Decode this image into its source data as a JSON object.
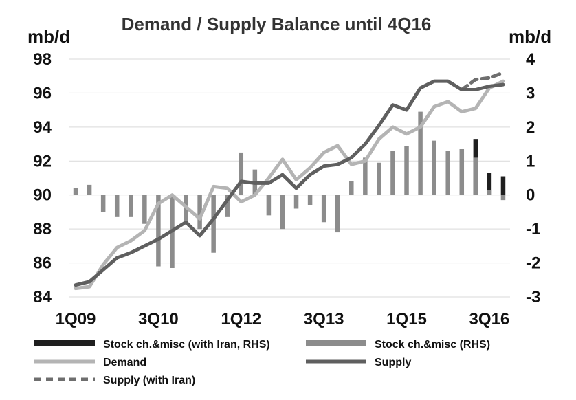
{
  "chart_data": {
    "type": "bar+line",
    "title": "Demand / Supply Balance until 4Q16",
    "y_left_unit": "mb/d",
    "y_right_unit": "mb/d",
    "y_left_range": [
      84,
      98
    ],
    "y_right_range": [
      -3,
      4
    ],
    "y_left_ticks": [
      "98",
      "96",
      "94",
      "92",
      "90",
      "88",
      "86",
      "84"
    ],
    "y_right_ticks": [
      "4",
      "3",
      "2",
      "1",
      "0",
      "-1",
      "-2",
      "-3"
    ],
    "x_tick_labels": [
      "1Q09",
      "3Q10",
      "1Q12",
      "3Q13",
      "1Q15",
      "3Q16"
    ],
    "x_tick_positions": [
      0,
      6,
      12,
      18,
      24,
      30
    ],
    "gridlines": "horizontal",
    "legend_position": "bottom",
    "quarters": [
      "1Q09",
      "2Q09",
      "3Q09",
      "4Q09",
      "1Q10",
      "2Q10",
      "3Q10",
      "4Q10",
      "1Q11",
      "2Q11",
      "3Q11",
      "4Q11",
      "1Q12",
      "2Q12",
      "3Q12",
      "4Q12",
      "1Q13",
      "2Q13",
      "3Q13",
      "4Q13",
      "1Q14",
      "2Q14",
      "3Q14",
      "4Q14",
      "1Q15",
      "2Q15",
      "3Q15",
      "4Q15",
      "1Q16",
      "2Q16",
      "3Q16",
      "4Q16"
    ],
    "series": [
      {
        "name": "Stock ch.&misc (with Iran, RHS)",
        "kind": "bar",
        "axis": "right",
        "color": "#1f1f1f",
        "values": [
          null,
          null,
          null,
          null,
          null,
          null,
          null,
          null,
          null,
          null,
          null,
          null,
          null,
          null,
          null,
          null,
          null,
          null,
          null,
          null,
          null,
          null,
          null,
          null,
          null,
          null,
          null,
          null,
          null,
          1.65,
          0.65,
          0.55
        ]
      },
      {
        "name": "Stock ch.&misc (RHS)",
        "kind": "bar",
        "axis": "right",
        "color": "#8c8c8c",
        "values": [
          0.2,
          0.3,
          -0.5,
          -0.65,
          -0.65,
          -0.85,
          -2.1,
          -2.15,
          -0.85,
          -1.0,
          -1.7,
          -0.65,
          1.25,
          0.75,
          -0.6,
          -1.0,
          -0.4,
          -0.3,
          -0.8,
          -1.1,
          0.4,
          1.1,
          0.95,
          1.3,
          1.45,
          2.45,
          1.6,
          1.3,
          1.35,
          1.1,
          0.15,
          -0.15
        ]
      },
      {
        "name": "Demand",
        "kind": "line",
        "axis": "left",
        "color": "#b4b4b4",
        "dash": false,
        "values": [
          84.5,
          84.6,
          85.9,
          86.9,
          87.3,
          87.9,
          89.5,
          90.0,
          89.3,
          88.6,
          90.5,
          90.4,
          89.6,
          90.0,
          91.0,
          92.1,
          90.9,
          91.6,
          92.5,
          92.9,
          91.8,
          92.0,
          93.3,
          94.0,
          93.6,
          94.0,
          95.2,
          95.5,
          94.9,
          95.1,
          96.3,
          96.7
        ]
      },
      {
        "name": "Supply",
        "kind": "line",
        "axis": "left",
        "color": "#5f5f5f",
        "dash": false,
        "values": [
          84.7,
          84.9,
          85.6,
          86.3,
          86.6,
          87.0,
          87.4,
          87.9,
          88.4,
          87.6,
          88.6,
          89.7,
          90.8,
          90.7,
          90.7,
          91.2,
          90.4,
          91.2,
          91.7,
          91.8,
          92.2,
          93.0,
          94.1,
          95.3,
          95.0,
          96.3,
          96.7,
          96.7,
          96.2,
          96.2,
          96.4,
          96.5
        ]
      },
      {
        "name": "Supply (with Iran)",
        "kind": "line",
        "axis": "left",
        "color": "#6e6e6e",
        "dash": true,
        "values": [
          null,
          null,
          null,
          null,
          null,
          null,
          null,
          null,
          null,
          null,
          null,
          null,
          null,
          null,
          null,
          null,
          null,
          null,
          null,
          null,
          null,
          null,
          null,
          null,
          null,
          null,
          null,
          null,
          96.2,
          96.8,
          96.9,
          97.2
        ]
      }
    ]
  }
}
